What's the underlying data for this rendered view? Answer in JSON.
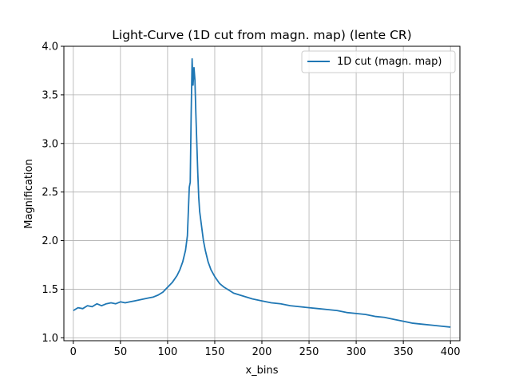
{
  "chart_data": {
    "type": "line",
    "title": "Light-Curve (1D cut from magn. map) (lente CR)",
    "xlabel": "x_bins",
    "ylabel": "Magnification",
    "xlim": [
      -10,
      410
    ],
    "ylim": [
      0.97,
      4.0
    ],
    "xticks": [
      0,
      50,
      100,
      150,
      200,
      250,
      300,
      350,
      400
    ],
    "yticks": [
      1.0,
      1.5,
      2.0,
      2.5,
      3.0,
      3.5,
      4.0
    ],
    "xtick_labels": [
      "0",
      "50",
      "100",
      "150",
      "200",
      "250",
      "300",
      "350",
      "400"
    ],
    "ytick_labels": [
      "1.0",
      "1.5",
      "2.0",
      "2.5",
      "3.0",
      "3.5",
      "4.0"
    ],
    "grid": true,
    "legend_position": "top-right",
    "series": [
      {
        "name": "1D cut (magn. map)",
        "color": "#1f77b4",
        "points": [
          [
            0,
            1.28
          ],
          [
            5,
            1.31
          ],
          [
            10,
            1.3
          ],
          [
            15,
            1.33
          ],
          [
            20,
            1.32
          ],
          [
            25,
            1.35
          ],
          [
            30,
            1.33
          ],
          [
            35,
            1.35
          ],
          [
            40,
            1.36
          ],
          [
            45,
            1.35
          ],
          [
            50,
            1.37
          ],
          [
            55,
            1.36
          ],
          [
            60,
            1.37
          ],
          [
            65,
            1.38
          ],
          [
            70,
            1.39
          ],
          [
            75,
            1.4
          ],
          [
            80,
            1.41
          ],
          [
            85,
            1.42
          ],
          [
            90,
            1.44
          ],
          [
            95,
            1.47
          ],
          [
            100,
            1.52
          ],
          [
            105,
            1.57
          ],
          [
            110,
            1.64
          ],
          [
            113,
            1.7
          ],
          [
            116,
            1.78
          ],
          [
            119,
            1.9
          ],
          [
            121,
            2.05
          ],
          [
            122,
            2.3
          ],
          [
            123,
            2.55
          ],
          [
            124,
            2.6
          ],
          [
            125,
            3.3
          ],
          [
            126,
            3.87
          ],
          [
            127,
            3.6
          ],
          [
            128,
            3.78
          ],
          [
            129,
            3.65
          ],
          [
            130,
            3.3
          ],
          [
            131,
            3.0
          ],
          [
            132,
            2.7
          ],
          [
            133,
            2.45
          ],
          [
            134,
            2.3
          ],
          [
            136,
            2.15
          ],
          [
            138,
            2.0
          ],
          [
            140,
            1.9
          ],
          [
            143,
            1.78
          ],
          [
            146,
            1.7
          ],
          [
            150,
            1.63
          ],
          [
            155,
            1.56
          ],
          [
            160,
            1.52
          ],
          [
            165,
            1.49
          ],
          [
            170,
            1.46
          ],
          [
            180,
            1.43
          ],
          [
            190,
            1.4
          ],
          [
            200,
            1.38
          ],
          [
            210,
            1.36
          ],
          [
            220,
            1.35
          ],
          [
            230,
            1.33
          ],
          [
            240,
            1.32
          ],
          [
            250,
            1.31
          ],
          [
            260,
            1.3
          ],
          [
            270,
            1.29
          ],
          [
            280,
            1.28
          ],
          [
            290,
            1.26
          ],
          [
            300,
            1.25
          ],
          [
            310,
            1.24
          ],
          [
            320,
            1.22
          ],
          [
            330,
            1.21
          ],
          [
            340,
            1.19
          ],
          [
            350,
            1.17
          ],
          [
            360,
            1.15
          ],
          [
            370,
            1.14
          ],
          [
            380,
            1.13
          ],
          [
            390,
            1.12
          ],
          [
            400,
            1.11
          ]
        ]
      }
    ]
  }
}
